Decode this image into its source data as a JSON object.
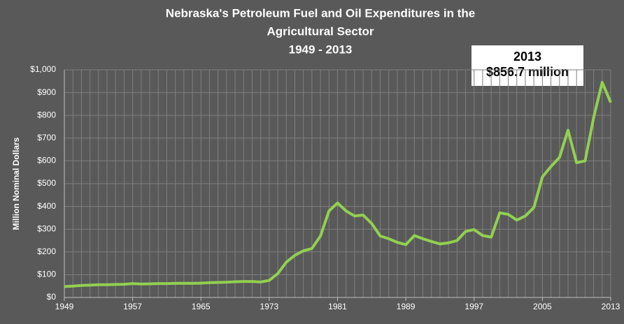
{
  "chart_data": {
    "type": "line",
    "title": [
      "Nebraska's Petroleum Fuel and Oil Expenditures in the",
      "Agricultural Sector",
      "1949 - 2013"
    ],
    "ylabel": "Million Nominal Dollars",
    "annotation": [
      "2013",
      "$856.7 million"
    ],
    "x": [
      1949,
      1950,
      1951,
      1952,
      1953,
      1954,
      1955,
      1956,
      1957,
      1958,
      1959,
      1960,
      1961,
      1962,
      1963,
      1964,
      1965,
      1966,
      1967,
      1968,
      1969,
      1970,
      1971,
      1972,
      1973,
      1974,
      1975,
      1976,
      1977,
      1978,
      1979,
      1980,
      1981,
      1982,
      1983,
      1984,
      1985,
      1986,
      1987,
      1988,
      1989,
      1990,
      1991,
      1992,
      1993,
      1994,
      1995,
      1996,
      1997,
      1998,
      1999,
      2000,
      2001,
      2002,
      2003,
      2004,
      2005,
      2006,
      2007,
      2008,
      2009,
      2010,
      2011,
      2012,
      2013
    ],
    "series": [
      {
        "name": "Expenditures",
        "color": "#92d050",
        "values": [
          48,
          50,
          53,
          54,
          56,
          56,
          57,
          58,
          61,
          59,
          60,
          61,
          61,
          62,
          62,
          62,
          63,
          65,
          66,
          67,
          69,
          70,
          70,
          68,
          75,
          105,
          155,
          185,
          205,
          215,
          270,
          380,
          415,
          380,
          358,
          362,
          325,
          270,
          258,
          242,
          232,
          272,
          258,
          246,
          235,
          240,
          250,
          290,
          298,
          272,
          265,
          372,
          365,
          340,
          358,
          395,
          530,
          575,
          615,
          735,
          592,
          600,
          790,
          945,
          856.7
        ]
      }
    ],
    "xlim": [
      1949,
      2013
    ],
    "xticks": [
      1949,
      1957,
      1965,
      1973,
      1981,
      1989,
      1997,
      2005,
      2013
    ],
    "ylim": [
      0,
      1000
    ],
    "yticks": [
      {
        "value": 0,
        "label": "$0"
      },
      {
        "value": 100,
        "label": "$100"
      },
      {
        "value": 200,
        "label": "$200"
      },
      {
        "value": 300,
        "label": "$300"
      },
      {
        "value": 400,
        "label": "$400"
      },
      {
        "value": 500,
        "label": "$500"
      },
      {
        "value": 600,
        "label": "$600"
      },
      {
        "value": 700,
        "label": "$700"
      },
      {
        "value": 800,
        "label": "$800"
      },
      {
        "value": 900,
        "label": "$900"
      },
      {
        "value": 1000,
        "label": "$1,000"
      }
    ],
    "grid": true
  }
}
